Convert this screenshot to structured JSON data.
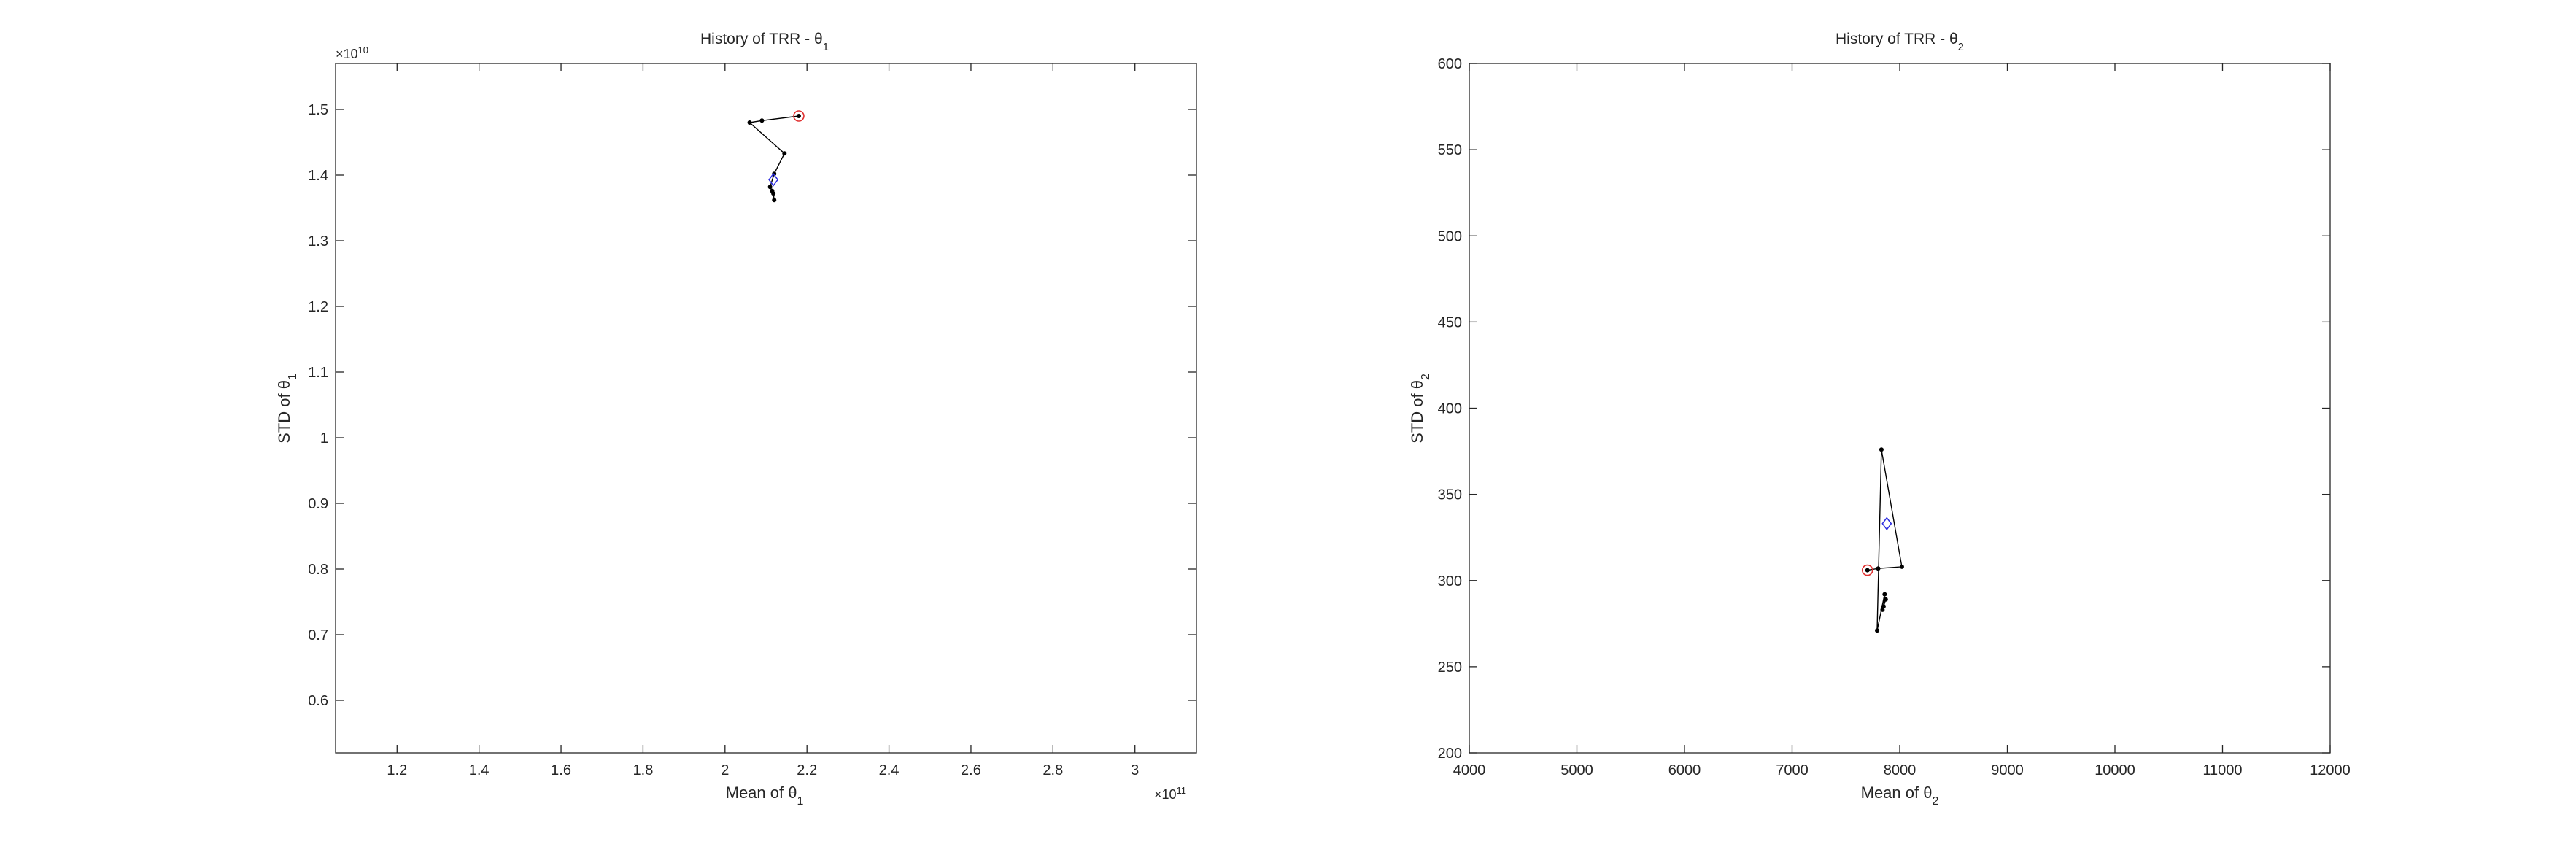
{
  "chart_data": [
    {
      "type": "line",
      "title": "History of TRR - θ",
      "title_sub": "1",
      "xlabel": "Mean of θ",
      "xlabel_sub": "1",
      "ylabel": "STD of θ",
      "ylabel_sub": "1",
      "x_exponent_base": "×10",
      "x_exponent_power": "11",
      "y_exponent_base": "×10",
      "y_exponent_power": "10",
      "xlim": [
        1.05,
        3.15
      ],
      "ylim": [
        0.52,
        1.57
      ],
      "xticks": [
        1.2,
        1.4,
        1.6,
        1.8,
        2,
        2.2,
        2.4,
        2.6,
        2.8,
        3
      ],
      "xtick_labels": [
        "1.2",
        "1.4",
        "1.6",
        "1.8",
        "2",
        "2.2",
        "2.4",
        "2.6",
        "2.8",
        "3"
      ],
      "yticks": [
        0.6,
        0.7,
        0.8,
        0.9,
        1,
        1.1,
        1.2,
        1.3,
        1.4,
        1.5
      ],
      "ytick_labels": [
        "0.6",
        "0.7",
        "0.8",
        "0.9",
        "1",
        "1.1",
        "1.2",
        "1.3",
        "1.4",
        "1.5"
      ],
      "path": [
        [
          2.18,
          1.49
        ],
        [
          2.09,
          1.483
        ],
        [
          2.06,
          1.48
        ],
        [
          2.145,
          1.433
        ],
        [
          2.12,
          1.402
        ],
        [
          2.11,
          1.382
        ],
        [
          2.115,
          1.376
        ],
        [
          2.118,
          1.372
        ],
        [
          2.12,
          1.362
        ]
      ],
      "start_point": [
        2.18,
        1.49
      ],
      "mean_point": [
        2.118,
        1.393
      ],
      "colors": {
        "line": "#000000",
        "start_ring": "#e03030",
        "mean_marker": "#2a2ae0"
      }
    },
    {
      "type": "line",
      "title": "History of TRR - θ",
      "title_sub": "2",
      "xlabel": "Mean of θ",
      "xlabel_sub": "2",
      "ylabel": "STD of θ",
      "ylabel_sub": "2",
      "xlim": [
        4000,
        12000
      ],
      "ylim": [
        200,
        600
      ],
      "xticks": [
        4000,
        5000,
        6000,
        7000,
        8000,
        9000,
        10000,
        11000,
        12000
      ],
      "xtick_labels": [
        "4000",
        "5000",
        "6000",
        "7000",
        "8000",
        "9000",
        "10000",
        "11000",
        "12000"
      ],
      "yticks": [
        200,
        250,
        300,
        350,
        400,
        450,
        500,
        550,
        600
      ],
      "ytick_labels": [
        "200",
        "250",
        "300",
        "350",
        "400",
        "450",
        "500",
        "550",
        "600"
      ],
      "path": [
        [
          7700,
          306
        ],
        [
          7800,
          307
        ],
        [
          8020,
          308
        ],
        [
          7830,
          376
        ],
        [
          7790,
          271
        ],
        [
          7860,
          292
        ],
        [
          7850,
          285
        ],
        [
          7870,
          289
        ],
        [
          7840,
          283
        ]
      ],
      "start_point": [
        7700,
        306
      ],
      "mean_point": [
        7880,
        333
      ],
      "colors": {
        "line": "#000000",
        "start_ring": "#e03030",
        "mean_marker": "#2a2ae0"
      }
    }
  ]
}
